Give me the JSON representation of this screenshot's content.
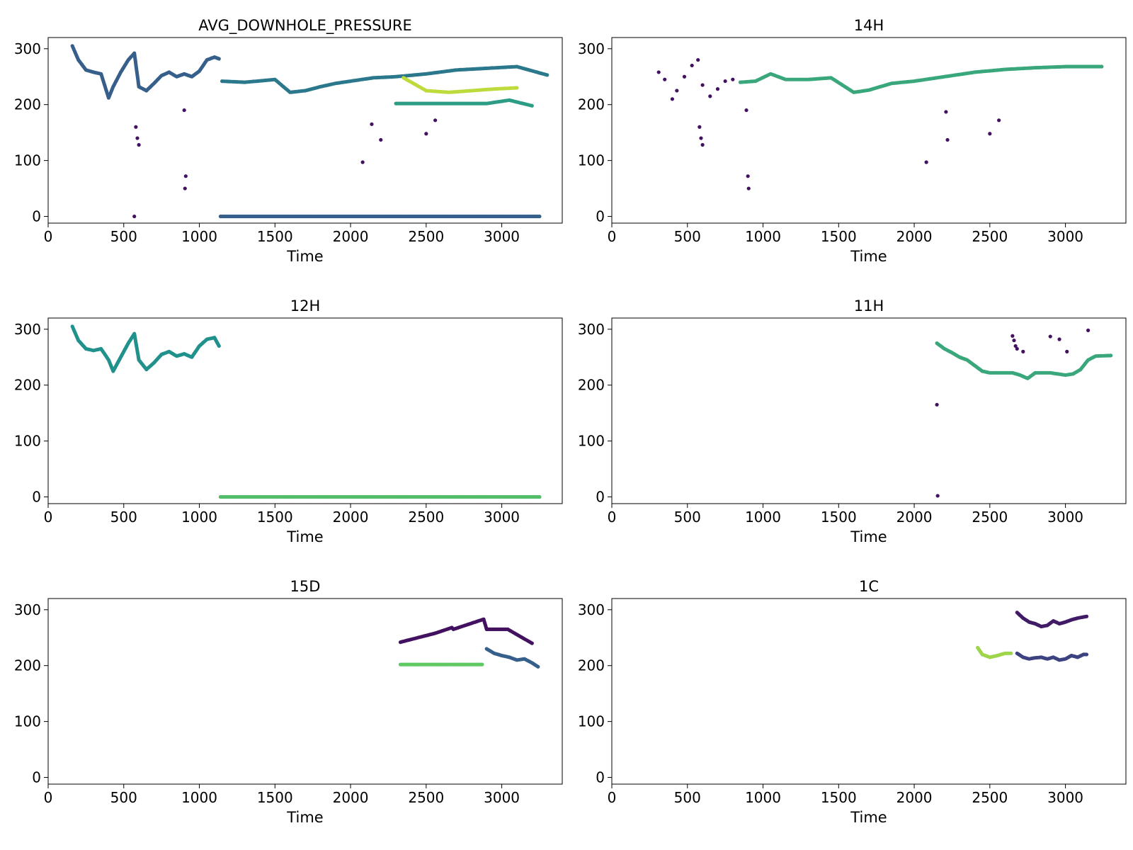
{
  "figure": {
    "colormap": "viridis",
    "colors": [
      "#440154",
      "#3b528b",
      "#21918c",
      "#5ec962",
      "#fde725"
    ]
  },
  "chart_data": [
    {
      "type": "scatter",
      "title": "AVG_DOWNHOLE_PRESSURE",
      "xlabel": "Time",
      "ylabel": "",
      "xlim": [
        0,
        3400
      ],
      "ylim": [
        -12,
        320
      ],
      "xticks": [
        0,
        500,
        1000,
        1500,
        2000,
        2500,
        3000
      ],
      "yticks": [
        0,
        100,
        200,
        300
      ],
      "grid": false,
      "series": [
        {
          "x": [
            160,
            200,
            250,
            300,
            350,
            400,
            430,
            480,
            530,
            570,
            600,
            650,
            700,
            750,
            800,
            850,
            900,
            950,
            1000,
            1050,
            1100,
            1130
          ],
          "y": [
            305,
            280,
            262,
            258,
            255,
            212,
            232,
            258,
            280,
            292,
            232,
            225,
            238,
            252,
            258,
            250,
            255,
            250,
            260,
            280,
            285,
            282
          ],
          "color": 0.3
        },
        {
          "x": [
            1150,
            1300,
            1500,
            1600,
            1700,
            1800,
            1900,
            2000,
            2150,
            2300,
            2500,
            2700,
            2900,
            3100,
            3300
          ],
          "y": [
            242,
            240,
            245,
            222,
            225,
            232,
            238,
            242,
            248,
            250,
            255,
            262,
            265,
            268,
            253
          ],
          "color": 0.4
        },
        {
          "x": [
            2300,
            2450,
            2600,
            2750,
            2900,
            3050,
            3200
          ],
          "y": [
            202,
            202,
            202,
            202,
            202,
            208,
            198
          ],
          "color": 0.55
        },
        {
          "x": [
            2350,
            2500,
            2650,
            2800,
            2950,
            3100
          ],
          "y": [
            248,
            225,
            222,
            225,
            228,
            230
          ],
          "color": 0.9
        },
        {
          "x": [
            1140,
            1400,
            1700,
            2000,
            2300,
            2600,
            2900,
            3250
          ],
          "y": [
            0,
            0,
            0,
            0,
            0,
            0,
            0,
            0
          ],
          "color": 0.3
        },
        {
          "x": [
            580,
            590,
            600,
            570,
            900,
            910,
            905,
            2080,
            2140,
            2200,
            2500,
            2560
          ],
          "y": [
            160,
            140,
            128,
            0,
            190,
            72,
            50,
            97,
            165,
            137,
            148,
            172
          ],
          "color": 0.05
        }
      ]
    },
    {
      "type": "scatter",
      "title": "14H",
      "xlabel": "Time",
      "ylabel": "",
      "xlim": [
        0,
        3400
      ],
      "ylim": [
        -12,
        320
      ],
      "xticks": [
        0,
        500,
        1000,
        1500,
        2000,
        2500,
        3000
      ],
      "yticks": [
        0,
        100,
        200,
        300
      ],
      "grid": false,
      "series": [
        {
          "x": [
            310,
            350,
            400,
            430,
            480,
            530,
            570,
            600,
            650,
            700,
            750,
            800
          ],
          "y": [
            258,
            245,
            210,
            225,
            250,
            270,
            280,
            235,
            215,
            228,
            242,
            245
          ],
          "color": 0.05
        },
        {
          "x": [
            850,
            950,
            1050,
            1150,
            1300,
            1450,
            1600,
            1700,
            1850,
            2000,
            2200,
            2400,
            2600,
            2800,
            3000,
            3240
          ],
          "y": [
            240,
            242,
            255,
            245,
            245,
            248,
            222,
            226,
            238,
            242,
            250,
            258,
            263,
            266,
            268,
            268
          ],
          "color": 0.6
        },
        {
          "x": [
            580,
            590,
            600,
            890,
            900,
            905,
            2080,
            2210,
            2220,
            2500,
            2560
          ],
          "y": [
            160,
            140,
            128,
            190,
            72,
            50,
            97,
            187,
            137,
            148,
            172
          ],
          "color": 0.05
        }
      ]
    },
    {
      "type": "scatter",
      "title": "12H",
      "xlabel": "Time",
      "ylabel": "",
      "xlim": [
        0,
        3400
      ],
      "ylim": [
        -12,
        320
      ],
      "xticks": [
        0,
        500,
        1000,
        1500,
        2000,
        2500,
        3000
      ],
      "yticks": [
        0,
        100,
        200,
        300
      ],
      "grid": false,
      "series": [
        {
          "x": [
            160,
            200,
            250,
            300,
            350,
            400,
            430,
            480,
            530,
            570,
            600,
            650,
            700,
            750,
            800,
            850,
            900,
            950,
            1000,
            1050,
            1100,
            1130
          ],
          "y": [
            305,
            280,
            265,
            262,
            265,
            245,
            225,
            250,
            275,
            292,
            245,
            228,
            240,
            255,
            260,
            252,
            256,
            250,
            270,
            282,
            285,
            270
          ],
          "color": 0.5
        },
        {
          "x": [
            1140,
            1400,
            1800,
            2200,
            2600,
            2900,
            3250
          ],
          "y": [
            0,
            0,
            0,
            0,
            0,
            0,
            0
          ],
          "color": 0.7
        }
      ]
    },
    {
      "type": "scatter",
      "title": "11H",
      "xlabel": "Time",
      "ylabel": "",
      "xlim": [
        0,
        3400
      ],
      "ylim": [
        -12,
        320
      ],
      "xticks": [
        0,
        500,
        1000,
        1500,
        2000,
        2500,
        3000
      ],
      "yticks": [
        0,
        100,
        200,
        300
      ],
      "grid": false,
      "series": [
        {
          "x": [
            2150,
            2200,
            2250,
            2300,
            2350,
            2400,
            2450,
            2500,
            2550,
            2600,
            2650,
            2700,
            2750,
            2800,
            2850,
            2900,
            2950,
            3000,
            3050,
            3100,
            3150,
            3200,
            3300
          ],
          "y": [
            275,
            265,
            258,
            250,
            245,
            235,
            225,
            222,
            222,
            222,
            222,
            218,
            212,
            222,
            222,
            222,
            220,
            218,
            220,
            228,
            245,
            252,
            253
          ],
          "color": 0.6
        },
        {
          "x": [
            2150,
            2155,
            2650,
            2660,
            2670,
            2680,
            2720,
            2900,
            2960,
            3010,
            3150
          ],
          "y": [
            165,
            2,
            288,
            280,
            270,
            265,
            260,
            287,
            282,
            260,
            298
          ],
          "color": 0.05
        }
      ]
    },
    {
      "type": "scatter",
      "title": "15D",
      "xlabel": "Time",
      "ylabel": "",
      "xlim": [
        0,
        3400
      ],
      "ylim": [
        -12,
        320
      ],
      "xticks": [
        0,
        500,
        1000,
        1500,
        2000,
        2500,
        3000
      ],
      "yticks": [
        0,
        100,
        200,
        300
      ],
      "grid": false,
      "series": [
        {
          "x": [
            2330,
            2400,
            2500,
            2600,
            2650,
            2700,
            2800,
            2870
          ],
          "y": [
            202,
            202,
            202,
            202,
            202,
            202,
            202,
            202
          ],
          "color": 0.75
        },
        {
          "x": [
            2900,
            2950,
            3000,
            3050,
            3100,
            3150,
            3200,
            3240
          ],
          "y": [
            230,
            222,
            218,
            215,
            210,
            212,
            205,
            198
          ],
          "color": 0.3
        },
        {
          "x": [
            2330,
            2560,
            2670,
            2680,
            2880,
            2900,
            3040,
            3200
          ],
          "y": [
            242,
            258,
            268,
            265,
            283,
            265,
            265,
            240
          ],
          "color": 0.05
        }
      ]
    },
    {
      "type": "scatter",
      "title": "1C",
      "xlabel": "Time",
      "ylabel": "",
      "xlim": [
        0,
        3400
      ],
      "ylim": [
        -12,
        320
      ],
      "xticks": [
        0,
        500,
        1000,
        1500,
        2000,
        2500,
        3000
      ],
      "yticks": [
        0,
        100,
        200,
        300
      ],
      "grid": false,
      "series": [
        {
          "x": [
            2420,
            2450,
            2500,
            2550,
            2600,
            2640
          ],
          "y": [
            232,
            220,
            215,
            218,
            222,
            222
          ],
          "color": 0.85
        },
        {
          "x": [
            2680,
            2720,
            2760,
            2800,
            2840,
            2880,
            2920,
            2960,
            3000,
            3040,
            3080,
            3120,
            3140
          ],
          "y": [
            295,
            285,
            278,
            275,
            270,
            272,
            280,
            275,
            278,
            282,
            285,
            287,
            288
          ],
          "color": 0.08
        },
        {
          "x": [
            2680,
            2720,
            2760,
            2800,
            2840,
            2880,
            2920,
            2960,
            3000,
            3040,
            3080,
            3120,
            3140
          ],
          "y": [
            222,
            215,
            212,
            214,
            215,
            212,
            215,
            210,
            212,
            218,
            215,
            220,
            220
          ],
          "color": 0.2
        }
      ]
    }
  ]
}
